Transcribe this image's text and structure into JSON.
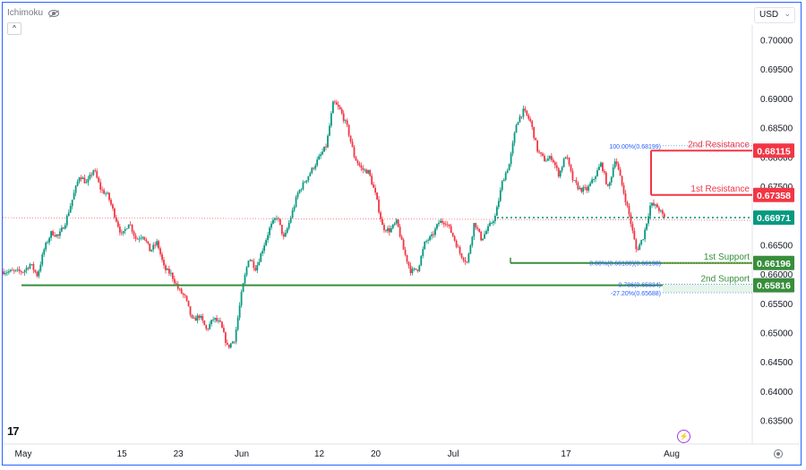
{
  "indicator_label": "Ichimoku",
  "currency": {
    "label": "USD"
  },
  "chart_data": {
    "type": "candlestick",
    "title": "",
    "y_axis": {
      "ticks": [
        "0.70000",
        "0.69500",
        "0.69000",
        "0.68500",
        "0.68000",
        "0.67500",
        "0.67000",
        "0.66500",
        "0.66000",
        "0.65500",
        "0.65000",
        "0.64500",
        "0.64000",
        "0.63500"
      ],
      "ylim": [
        0.6325,
        0.7025
      ]
    },
    "x_axis": {
      "ticks": [
        {
          "label": "May",
          "day": 0
        },
        {
          "label": "15",
          "day": 14
        },
        {
          "label": "23",
          "day": 22
        },
        {
          "label": "Jun",
          "day": 31
        },
        {
          "label": "12",
          "day": 42
        },
        {
          "label": "20",
          "day": 50
        },
        {
          "label": "Jul",
          "day": 61
        },
        {
          "label": "17",
          "day": 77
        },
        {
          "label": "Aug",
          "day": 92
        }
      ]
    },
    "price_path": [
      [
        0,
        0.6605
      ],
      [
        1,
        0.6618
      ],
      [
        2,
        0.6598
      ],
      [
        3,
        0.6645
      ],
      [
        4,
        0.6672
      ],
      [
        5,
        0.6665
      ],
      [
        6,
        0.669
      ],
      [
        7,
        0.673
      ],
      [
        8,
        0.677
      ],
      [
        9,
        0.6755
      ],
      [
        10,
        0.678
      ],
      [
        11,
        0.6745
      ],
      [
        12,
        0.6735
      ],
      [
        13,
        0.67
      ],
      [
        14,
        0.6665
      ],
      [
        15,
        0.669
      ],
      [
        16,
        0.666
      ],
      [
        17,
        0.6668
      ],
      [
        18,
        0.664
      ],
      [
        19,
        0.6655
      ],
      [
        20,
        0.661
      ],
      [
        21,
        0.66
      ],
      [
        22,
        0.6575
      ],
      [
        23,
        0.656
      ],
      [
        24,
        0.652
      ],
      [
        25,
        0.653
      ],
      [
        26,
        0.6505
      ],
      [
        27,
        0.6525
      ],
      [
        28,
        0.6515
      ],
      [
        29,
        0.6475
      ],
      [
        30,
        0.649
      ],
      [
        31,
        0.657
      ],
      [
        32,
        0.663
      ],
      [
        33,
        0.661
      ],
      [
        34,
        0.6645
      ],
      [
        35,
        0.668
      ],
      [
        36,
        0.67
      ],
      [
        37,
        0.666
      ],
      [
        38,
        0.67
      ],
      [
        39,
        0.674
      ],
      [
        40,
        0.676
      ],
      [
        41,
        0.678
      ],
      [
        42,
        0.68
      ],
      [
        43,
        0.682
      ],
      [
        44,
        0.6895
      ],
      [
        45,
        0.688
      ],
      [
        46,
        0.685
      ],
      [
        47,
        0.68
      ],
      [
        48,
        0.678
      ],
      [
        49,
        0.6775
      ],
      [
        50,
        0.6735
      ],
      [
        51,
        0.668
      ],
      [
        52,
        0.6675
      ],
      [
        53,
        0.669
      ],
      [
        54,
        0.664
      ],
      [
        55,
        0.6605
      ],
      [
        56,
        0.661
      ],
      [
        57,
        0.6655
      ],
      [
        58,
        0.6665
      ],
      [
        59,
        0.669
      ],
      [
        60,
        0.669
      ],
      [
        61,
        0.6665
      ],
      [
        62,
        0.6635
      ],
      [
        63,
        0.662
      ],
      [
        64,
        0.669
      ],
      [
        65,
        0.666
      ],
      [
        66,
        0.668
      ],
      [
        67,
        0.67
      ],
      [
        68,
        0.676
      ],
      [
        69,
        0.679
      ],
      [
        70,
        0.686
      ],
      [
        71,
        0.688
      ],
      [
        72,
        0.686
      ],
      [
        73,
        0.681
      ],
      [
        74,
        0.6795
      ],
      [
        75,
        0.68
      ],
      [
        76,
        0.677
      ],
      [
        77,
        0.6805
      ],
      [
        78,
        0.676
      ],
      [
        79,
        0.6745
      ],
      [
        80,
        0.6745
      ],
      [
        81,
        0.6765
      ],
      [
        82,
        0.679
      ],
      [
        83,
        0.6745
      ],
      [
        84,
        0.68
      ],
      [
        85,
        0.675
      ],
      [
        86,
        0.67
      ],
      [
        87,
        0.664
      ],
      [
        88,
        0.6665
      ],
      [
        89,
        0.672
      ],
      [
        90,
        0.6715
      ],
      [
        91,
        0.6695
      ]
    ],
    "levels": [
      {
        "label": "2nd Resistance",
        "value": "0.68115",
        "color": "#f23645"
      },
      {
        "label": "1st Resistance",
        "value": "0.67358",
        "color": "#f23645"
      },
      {
        "label": "",
        "value": "0.66971",
        "color": "#089981"
      },
      {
        "label": "1st Support",
        "value": "0.66196",
        "color": "#388e3c"
      },
      {
        "label": "2nd Support",
        "value": "0.65816",
        "color": "#388e3c"
      }
    ],
    "fib_labels": [
      {
        "text": "100.00%(0.68199)",
        "value": 0.68199
      },
      {
        "text": "0.00%(0.66180)(0.66198)",
        "value": 0.662
      },
      {
        "text": "0.786(0.65834)",
        "value": 0.65834
      },
      {
        "text": "-27.20%(0.65688)",
        "value": 0.65688
      }
    ],
    "colors": {
      "up": "#089981",
      "down": "#f23645",
      "grid": "#f0f3fa"
    }
  }
}
